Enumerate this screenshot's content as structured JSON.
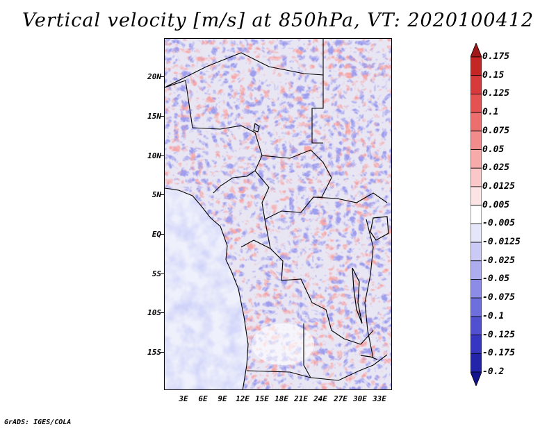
{
  "title": "Vertical velocity [m/s] at 850hPa, VT: 2020100412",
  "map": {
    "lat_labels": [
      "20N",
      "15N",
      "10N",
      "5N",
      "EQ",
      "5S",
      "10S",
      "15S"
    ],
    "lon_labels": [
      "3E",
      "6E",
      "9E",
      "12E",
      "15E",
      "18E",
      "21E",
      "24E",
      "27E",
      "30E",
      "33E"
    ]
  },
  "colorbar": {
    "levels": [
      "0.175",
      "0.15",
      "0.125",
      "0.1",
      "0.075",
      "0.05",
      "0.025",
      "0.0125",
      "0.005",
      "-0.005",
      "-0.0125",
      "-0.025",
      "-0.05",
      "-0.075",
      "-0.1",
      "-0.125",
      "-0.175",
      "-0.2"
    ],
    "colors": [
      "#a01818",
      "#c42626",
      "#d63a3a",
      "#e45252",
      "#ec6e6e",
      "#f28c8c",
      "#f7aaaa",
      "#fac8c8",
      "#fde4e4",
      "#ffffff",
      "#e6e6fb",
      "#cacaf5",
      "#acacee",
      "#8c8ce6",
      "#6e6edd",
      "#5050d0",
      "#3636c0",
      "#2424aa",
      "#14148e"
    ]
  },
  "credit": "GrADS: IGES/COLA"
}
